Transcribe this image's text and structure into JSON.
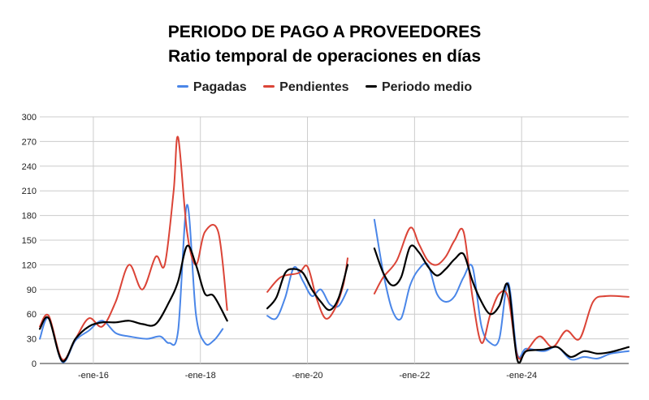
{
  "chart_data": {
    "type": "line",
    "title": "PERIODO DE PAGO A PROVEEDORES",
    "subtitle": "Ratio temporal de operaciones en días",
    "xlabel": "",
    "ylabel": "",
    "ylim": [
      0,
      300
    ],
    "yticks": [
      "0",
      "30",
      "60",
      "90",
      "120",
      "150",
      "180",
      "210",
      "240",
      "270",
      "300"
    ],
    "x_tick_labels": [
      "-ene-16",
      "-ene-18",
      "-ene-20",
      "-ene-22",
      "-ene-24"
    ],
    "x_tick_months": [
      12,
      36,
      60,
      84,
      108
    ],
    "x_range_months": [
      0,
      132
    ],
    "grid": true,
    "legend_position": "top-center",
    "series": [
      {
        "name": "Pagadas",
        "color": "#4a86e8",
        "points": [
          [
            [
              0,
              30
            ],
            [
              2,
              55
            ],
            [
              5,
              2
            ],
            [
              8,
              28
            ],
            [
              11,
              40
            ],
            [
              14,
              52
            ],
            [
              17,
              37
            ],
            [
              20,
              33
            ],
            [
              24,
              30
            ],
            [
              27,
              33
            ],
            [
              29,
              25
            ],
            [
              31,
              40
            ],
            [
              33,
              193
            ],
            [
              35,
              60
            ],
            [
              37,
              25
            ],
            [
              39,
              28
            ],
            [
              41,
              42
            ]
          ],
          [
            [
              51,
              58
            ],
            [
              53,
              55
            ],
            [
              55,
              80
            ],
            [
              57,
              117
            ],
            [
              59,
              100
            ],
            [
              61,
              82
            ],
            [
              63,
              90
            ],
            [
              65,
              72
            ],
            [
              67,
              70
            ],
            [
              69,
              90
            ]
          ],
          [
            [
              75,
              175
            ],
            [
              77,
              110
            ],
            [
              79,
              65
            ],
            [
              81,
              55
            ],
            [
              83,
              95
            ],
            [
              85,
              115
            ],
            [
              87,
              120
            ],
            [
              89,
              85
            ],
            [
              91,
              75
            ],
            [
              93,
              82
            ],
            [
              95,
              105
            ],
            [
              97,
              117
            ],
            [
              99,
              45
            ],
            [
              101,
              25
            ],
            [
              103,
              30
            ],
            [
              105,
              98
            ],
            [
              107,
              12
            ],
            [
              109,
              18
            ],
            [
              113,
              15
            ],
            [
              116,
              20
            ],
            [
              119,
              5
            ],
            [
              122,
              8
            ],
            [
              125,
              6
            ],
            [
              128,
              12
            ],
            [
              132,
              15
            ]
          ]
        ]
      },
      {
        "name": "Pendientes",
        "color": "#db4437",
        "points": [
          [
            [
              0,
              45
            ],
            [
              2,
              58
            ],
            [
              5,
              5
            ],
            [
              8,
              30
            ],
            [
              11,
              55
            ],
            [
              14,
              45
            ],
            [
              17,
              75
            ],
            [
              20,
              120
            ],
            [
              23,
              90
            ],
            [
              26,
              130
            ],
            [
              28,
              120
            ],
            [
              30,
              210
            ],
            [
              31,
              275
            ],
            [
              33,
              160
            ],
            [
              35,
              120
            ],
            [
              37,
              160
            ],
            [
              40,
              160
            ],
            [
              42,
              65
            ]
          ],
          [
            [
              51,
              87
            ],
            [
              54,
              105
            ],
            [
              58,
              110
            ],
            [
              60,
              118
            ],
            [
              62,
              80
            ],
            [
              64,
              55
            ],
            [
              66,
              65
            ],
            [
              68,
              95
            ],
            [
              69,
              128
            ]
          ],
          [
            [
              75,
              85
            ],
            [
              77,
              105
            ],
            [
              80,
              125
            ],
            [
              83,
              165
            ],
            [
              85,
              145
            ],
            [
              87,
              125
            ],
            [
              89,
              120
            ],
            [
              91,
              130
            ],
            [
              93,
              150
            ],
            [
              95,
              160
            ],
            [
              97,
              80
            ],
            [
              99,
              25
            ],
            [
              101,
              60
            ],
            [
              103,
              85
            ],
            [
              105,
              80
            ],
            [
              107,
              10
            ],
            [
              109,
              15
            ],
            [
              112,
              33
            ],
            [
              115,
              20
            ],
            [
              118,
              40
            ],
            [
              121,
              30
            ],
            [
              124,
              75
            ],
            [
              127,
              82
            ],
            [
              132,
              81
            ]
          ]
        ]
      },
      {
        "name": "Periodo medio",
        "color": "#000000",
        "points": [
          [
            [
              0,
              42
            ],
            [
              2,
              55
            ],
            [
              5,
              3
            ],
            [
              8,
              30
            ],
            [
              11,
              45
            ],
            [
              14,
              50
            ],
            [
              17,
              50
            ],
            [
              20,
              52
            ],
            [
              23,
              48
            ],
            [
              26,
              48
            ],
            [
              29,
              75
            ],
            [
              31,
              100
            ],
            [
              33,
              143
            ],
            [
              35,
              120
            ],
            [
              37,
              85
            ],
            [
              39,
              82
            ],
            [
              42,
              52
            ]
          ],
          [
            [
              51,
              67
            ],
            [
              53,
              80
            ],
            [
              55,
              110
            ],
            [
              57,
              115
            ],
            [
              59,
              110
            ],
            [
              61,
              90
            ],
            [
              63,
              75
            ],
            [
              65,
              65
            ],
            [
              67,
              80
            ],
            [
              69,
              120
            ]
          ],
          [
            [
              75,
              140
            ],
            [
              77,
              110
            ],
            [
              79,
              95
            ],
            [
              81,
              105
            ],
            [
              83,
              142
            ],
            [
              85,
              135
            ],
            [
              87,
              118
            ],
            [
              89,
              107
            ],
            [
              91,
              115
            ],
            [
              93,
              127
            ],
            [
              95,
              133
            ],
            [
              97,
              100
            ],
            [
              99,
              75
            ],
            [
              101,
              60
            ],
            [
              103,
              70
            ],
            [
              105,
              95
            ],
            [
              107,
              5
            ],
            [
              109,
              15
            ],
            [
              113,
              17
            ],
            [
              116,
              20
            ],
            [
              119,
              8
            ],
            [
              122,
              15
            ],
            [
              125,
              12
            ],
            [
              128,
              14
            ],
            [
              132,
              20
            ]
          ]
        ]
      }
    ]
  }
}
